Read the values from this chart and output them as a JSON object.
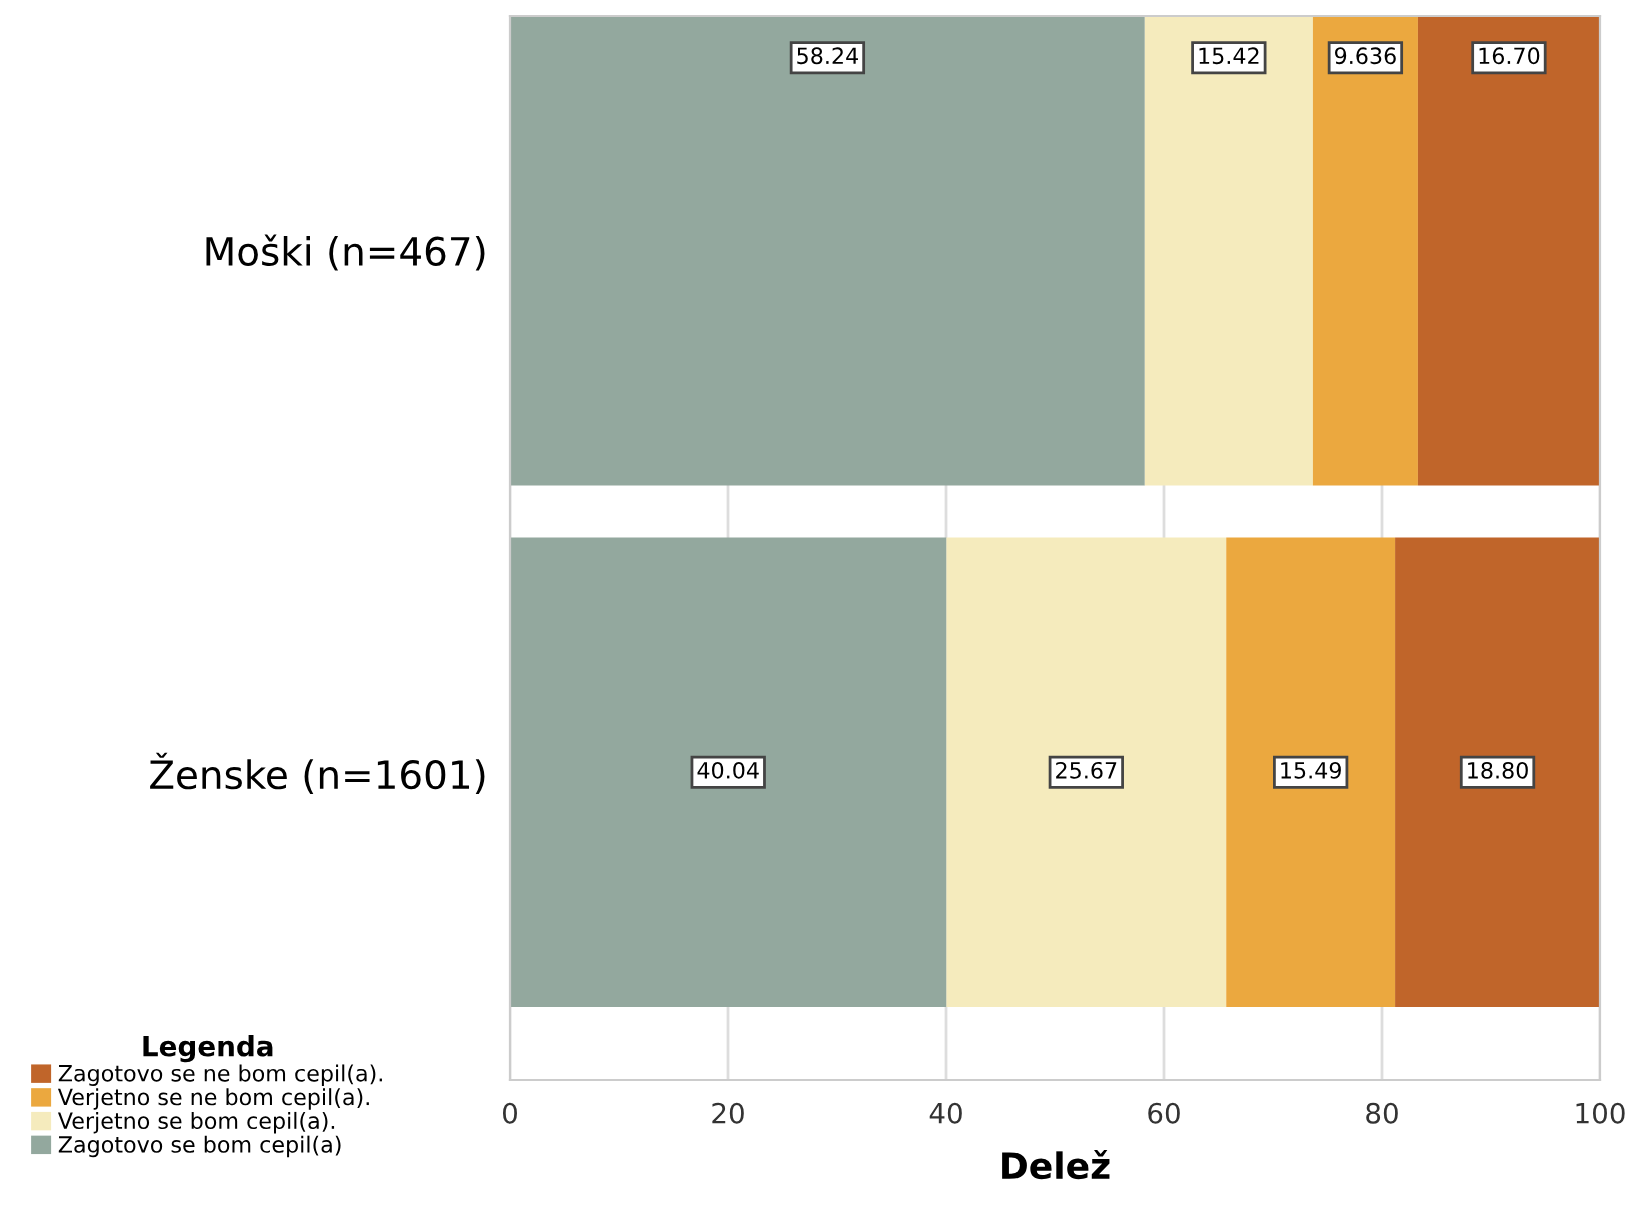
{
  "chart_data": {
    "type": "bar",
    "orientation": "horizontal",
    "stacked": true,
    "xlabel": "Delež",
    "legend_title": "Legenda",
    "categories": [
      "Moški (n=467)",
      "Ženske (n=1601)"
    ],
    "series": [
      {
        "name": "Zagotovo se bom cepil(a)",
        "color": "#93a89e",
        "values": [
          58.24,
          40.04
        ],
        "value_labels": [
          "58.24",
          "40.04"
        ]
      },
      {
        "name": "Verjetno se bom cepil(a).",
        "color": "#f5ebbd",
        "values": [
          15.42,
          25.67
        ],
        "value_labels": [
          "15.42",
          "25.67"
        ]
      },
      {
        "name": "Verjetno se ne bom cepil(a).",
        "color": "#eba83f",
        "values": [
          9.636,
          15.49
        ],
        "value_labels": [
          "9.636",
          "15.49"
        ]
      },
      {
        "name": "Zagotovo se ne bom cepil(a).",
        "color": "#c0652a",
        "values": [
          16.7,
          18.8
        ],
        "value_labels": [
          "16.70",
          "18.80"
        ]
      }
    ],
    "xlim": [
      0,
      100
    ],
    "xticks": [
      0,
      20,
      40,
      60,
      80,
      100
    ],
    "grid": "x",
    "legend": "bottom left"
  }
}
